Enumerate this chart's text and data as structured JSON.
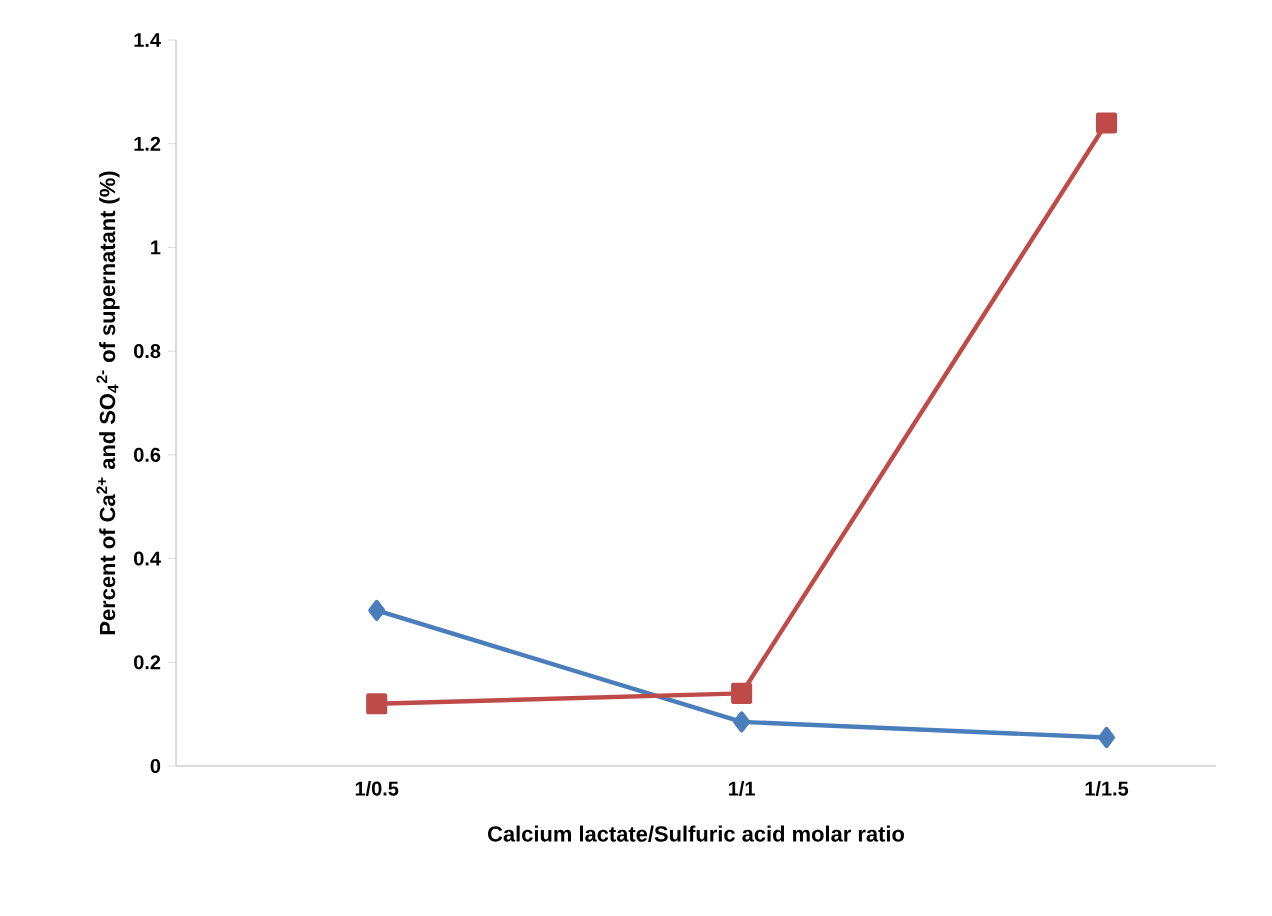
{
  "chart_data": {
    "type": "line",
    "xlabel": "Calcium lactate/Sulfuric acid molar ratio",
    "ylabel": "Percent of Ca$^{2+}$ and SO$_{4}$$^{2-}$ of supernatant (%)",
    "categories": [
      "1/0.5",
      "1/1",
      "1/1.5"
    ],
    "series": [
      {
        "color": "#4a7ebb",
        "marker": "diamond",
        "values": [
          0.3,
          0.085,
          0.055
        ]
      },
      {
        "color": "#be4b48",
        "marker": "square",
        "values": [
          0.12,
          0.14,
          1.24
        ]
      }
    ],
    "ylim": [
      0,
      1.4
    ],
    "yticks": [
      0,
      0.2,
      0.4,
      0.6,
      0.8,
      1,
      1.2,
      1.4
    ],
    "grid": false
  }
}
